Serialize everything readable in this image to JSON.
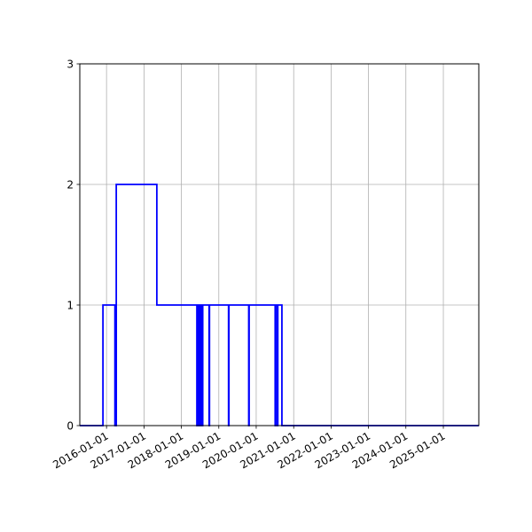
{
  "chart_data": {
    "type": "line",
    "step": "post",
    "title": "",
    "xlabel": "",
    "ylabel": "",
    "xlim": [
      "2015-04-15",
      "2025-12-13"
    ],
    "ylim": [
      0,
      3
    ],
    "grid": true,
    "line_color": "#0000ff",
    "x_ticks": [
      "2016-01-01",
      "2017-01-01",
      "2018-01-01",
      "2019-01-01",
      "2020-01-01",
      "2021-01-01",
      "2022-01-01",
      "2023-01-01",
      "2024-01-01",
      "2025-01-01"
    ],
    "y_ticks": [
      "0",
      "1",
      "2",
      "3"
    ],
    "series": [
      {
        "points": [
          [
            "2015-04-15",
            0
          ],
          [
            "2015-11-27",
            1
          ],
          [
            "2016-03-23",
            0
          ],
          [
            "2016-04-05",
            2
          ],
          [
            "2017-05-06",
            1
          ],
          [
            "2018-06-01",
            0
          ],
          [
            "2018-06-05",
            1
          ],
          [
            "2018-06-18",
            0
          ],
          [
            "2018-06-22",
            1
          ],
          [
            "2018-07-05",
            0
          ],
          [
            "2018-07-09",
            1
          ],
          [
            "2018-07-22",
            0
          ],
          [
            "2018-07-28",
            1
          ],
          [
            "2018-09-28",
            0
          ],
          [
            "2018-10-02",
            1
          ],
          [
            "2019-04-06",
            0
          ],
          [
            "2019-04-10",
            1
          ],
          [
            "2019-10-20",
            0
          ],
          [
            "2019-10-24",
            1
          ],
          [
            "2020-07-04",
            0
          ],
          [
            "2020-07-09",
            1
          ],
          [
            "2020-07-25",
            0
          ],
          [
            "2020-07-30",
            1
          ],
          [
            "2020-09-08",
            0
          ],
          [
            "2025-12-13",
            0
          ]
        ]
      }
    ]
  }
}
